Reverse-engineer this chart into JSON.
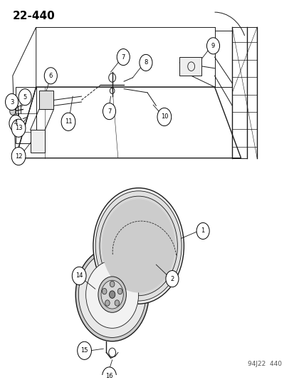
{
  "title": "22-440",
  "footer": "94J22  440",
  "bg_color": "#ffffff",
  "line_color": "#1a1a1a",
  "title_fontsize": 11,
  "label_fontsize": 6.5,
  "footer_fontsize": 6.5,
  "fig_width": 4.14,
  "fig_height": 5.33,
  "dpi": 100
}
